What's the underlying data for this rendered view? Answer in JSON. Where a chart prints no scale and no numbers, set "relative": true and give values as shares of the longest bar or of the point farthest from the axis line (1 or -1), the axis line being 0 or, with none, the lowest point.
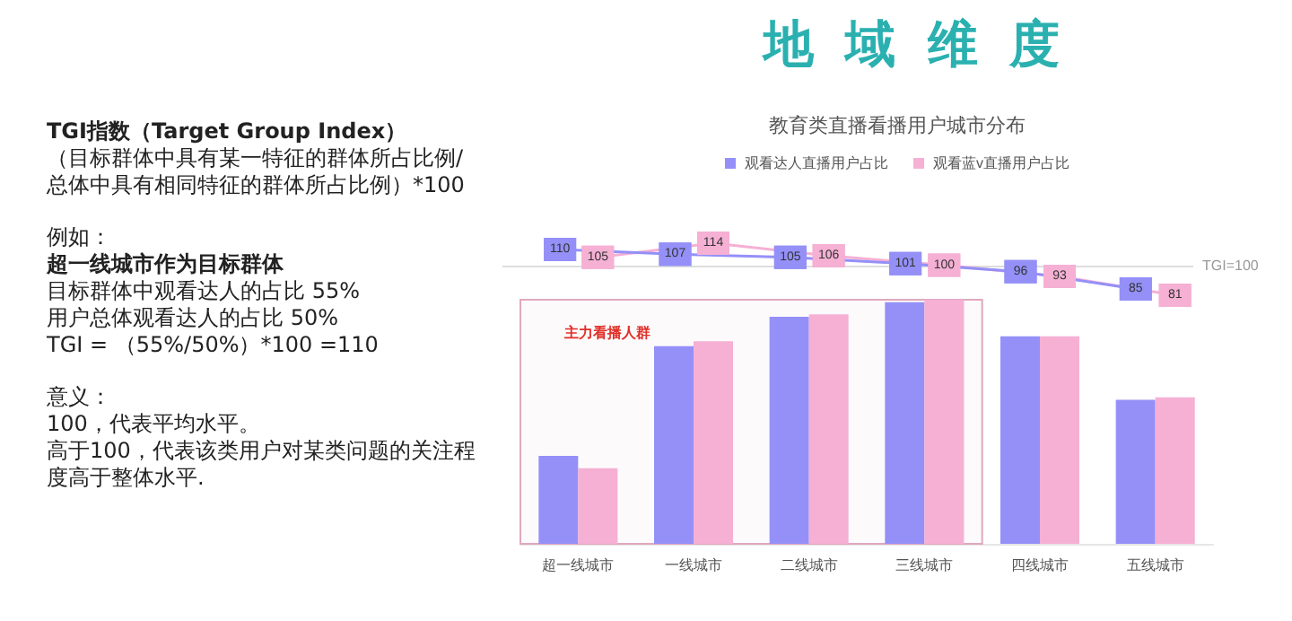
{
  "chart_data": [
    {
      "type": "line",
      "title": "地 域 维 度",
      "subtitle": "教育类直播看播用户城市分布",
      "annotations": [
        "TGI指数（Target Group Index）",
        "（目标群体中具有某一特征的群体所占比例/总体中具有相同特征的群体所占比例）*100",
        "例如：",
        "超一线城市作为目标群体",
        "目标群体中观看达人的占比 55%",
        "用户总体观看达人的占比 50%",
        "TGI = （55%/50%）*100 =110",
        "意义：",
        "100，代表平均水平。",
        "高于100，代表该类用户对某类问题的关注程度高于整体水平."
      ],
      "categories": [
        null,
        null,
        null,
        null,
        null,
        null
      ],
      "tick_labels": false,
      "marker": "square",
      "line_style": "solid",
      "grid": false,
      "series": [
        {
          "color": "#9490f8",
          "values": [
            110,
            107,
            105,
            101,
            96,
            85
          ],
          "value_labels": [
            "110",
            "107",
            "105",
            "101",
            "96",
            "85"
          ]
        },
        {
          "color": "#f5b0d4",
          "values": [
            105,
            114,
            106,
            100,
            93,
            81
          ],
          "value_labels": [
            "105",
            "114",
            "106",
            "100",
            "93",
            "81"
          ]
        }
      ],
      "ref_lines": [
        {
          "axis": "y",
          "value": 100,
          "label": "TGI=100",
          "color": "#dddddd"
        }
      ]
    },
    {
      "type": "bar",
      "relative": true,
      "categories": [
        "超一线城市",
        "一线城市",
        "二线城市",
        "三线城市",
        "四线城市",
        "五线城市"
      ],
      "series": [
        {
          "name": "观看达人直播用户占比",
          "color": "#9490f8",
          "values": [
            0.36,
            0.81,
            0.93,
            0.99,
            0.85,
            0.59
          ]
        },
        {
          "name": "观看蓝v直播用户占比",
          "color": "#f5b0d4",
          "values": [
            0.31,
            0.83,
            0.94,
            1,
            0.85,
            0.6
          ]
        }
      ],
      "bands": [
        {
          "axis": "x",
          "from": "超一线城市",
          "to": "三线城市",
          "label": "主力看播人群",
          "color": "#e0a8bf"
        }
      ],
      "legend": "top",
      "grid": false
    }
  ]
}
